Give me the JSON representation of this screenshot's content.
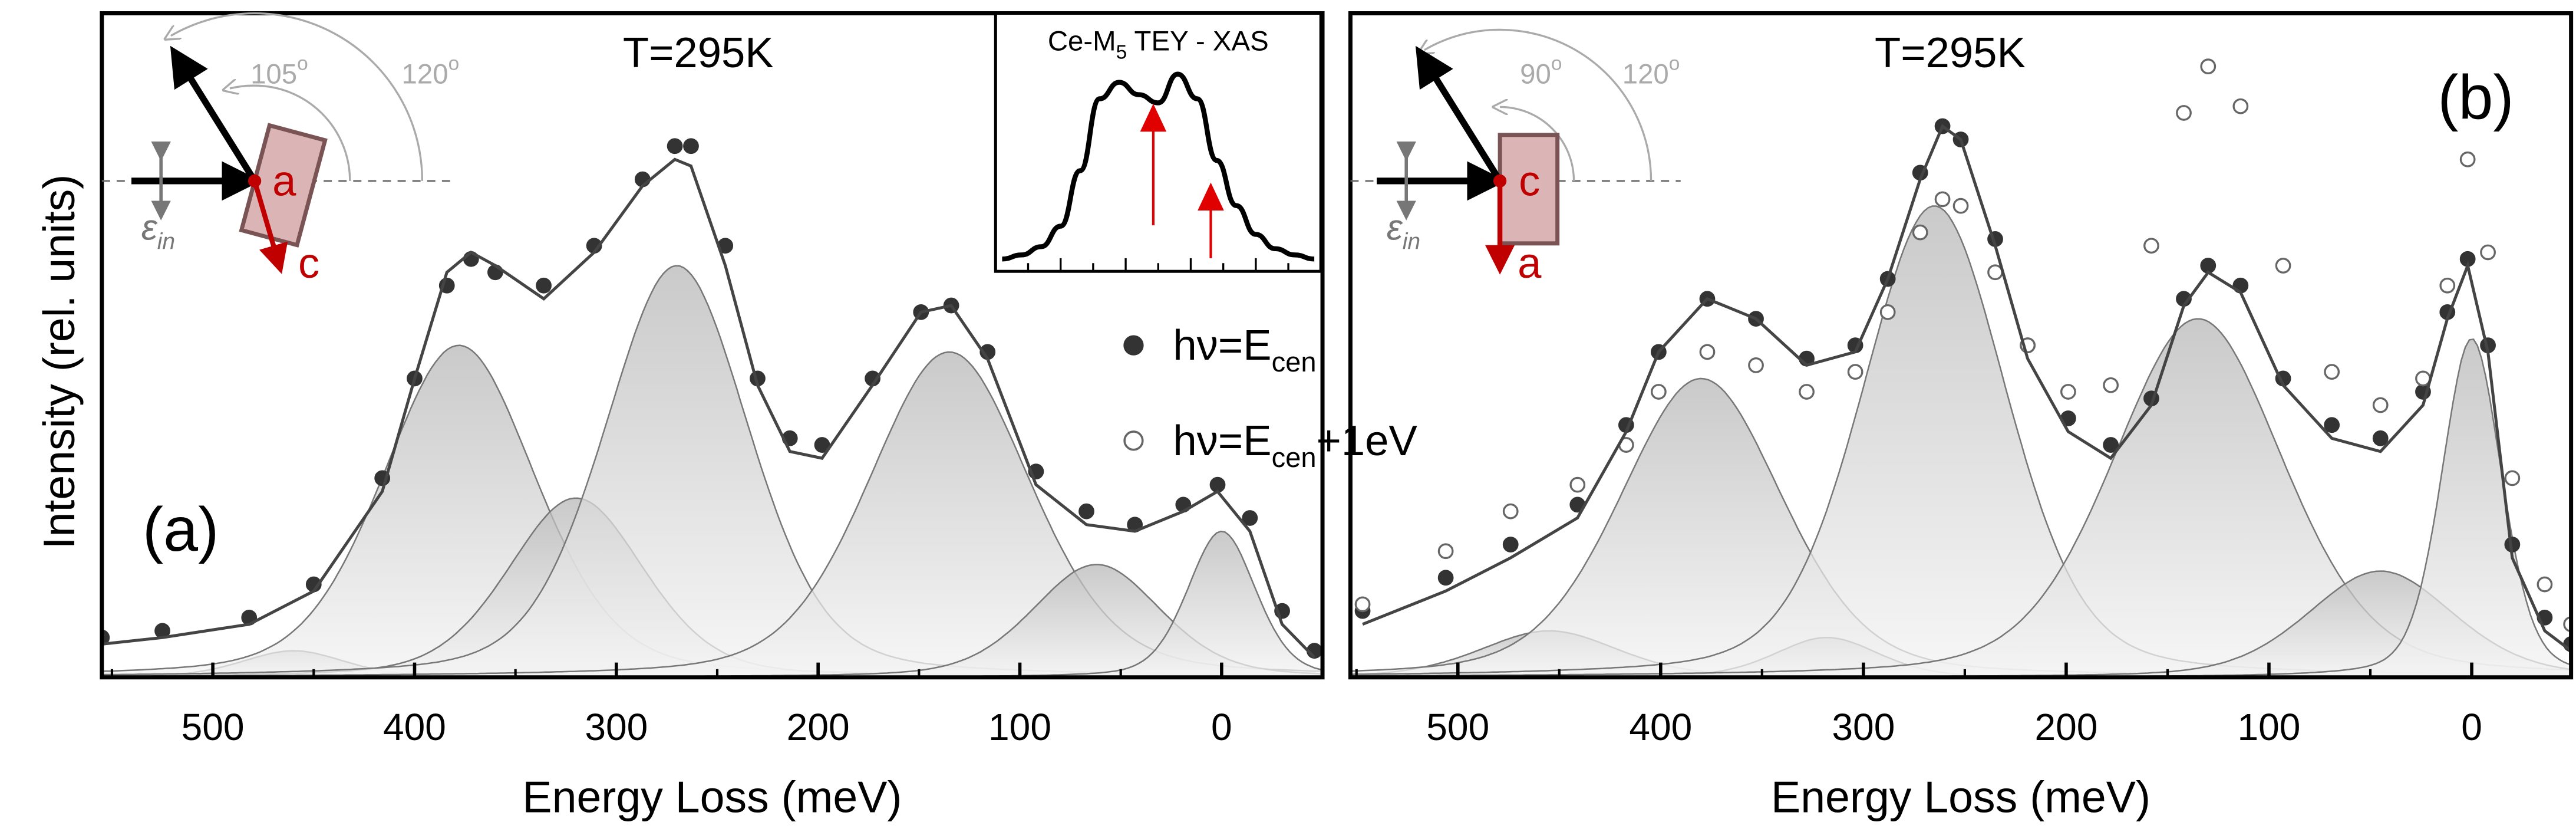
{
  "chart_data": [
    {
      "type": "scatter",
      "panel_label": "(a)",
      "temperature": "T=295K",
      "xlabel": "Energy Loss (meV)",
      "ylabel": "Intensity (rel. units)",
      "xlim": [
        555,
        -50
      ],
      "ylim": [
        0,
        100
      ],
      "xticks": [
        500,
        400,
        300,
        200,
        100,
        0
      ],
      "xminorticks": [
        550,
        450,
        350,
        250,
        150,
        50
      ],
      "x": [
        555,
        525,
        482,
        450,
        416,
        400,
        384,
        372,
        360,
        336,
        311,
        287,
        271,
        263,
        246,
        230,
        214,
        198,
        173,
        149,
        134,
        116,
        92,
        67,
        43,
        19,
        2,
        -14,
        -30,
        -46
      ],
      "series": [
        {
          "style": "filled",
          "color": "#333333",
          "values": [
            6,
            7,
            9,
            14,
            30,
            45,
            59,
            63,
            61,
            59,
            65,
            75,
            80,
            80,
            65,
            45,
            36,
            35,
            45,
            55,
            56,
            49,
            31,
            25,
            23,
            26,
            29,
            24,
            10,
            4
          ]
        },
        {
          "style": "line",
          "color": "#444444",
          "values": [
            5,
            6,
            8,
            13,
            28,
            45,
            61,
            64,
            62,
            57,
            64,
            74,
            78,
            77,
            62,
            44,
            34,
            33,
            44,
            55,
            56,
            48,
            29,
            23,
            22,
            25,
            28,
            22,
            8,
            3
          ]
        }
      ],
      "components": [
        {
          "center": 460,
          "height": 4,
          "width": 60
        },
        {
          "center": 378,
          "height": 50,
          "width": 90
        },
        {
          "center": 320,
          "height": 27,
          "width": 80
        },
        {
          "center": 270,
          "height": 62,
          "width": 85
        },
        {
          "center": 135,
          "height": 49,
          "width": 95
        },
        {
          "center": 62,
          "height": 17,
          "width": 75
        },
        {
          "center": 0,
          "height": 22,
          "width": 40
        }
      ],
      "angles": [
        {
          "text": "105",
          "sup": "o"
        },
        {
          "text": "120",
          "sup": "o"
        }
      ],
      "crystal": {
        "in_plane": "a",
        "out_plane": "c",
        "polarization": "ε",
        "polarization_sub": "in"
      }
    },
    {
      "type": "scatter",
      "panel_label": "(b)",
      "temperature": "T=295K",
      "xlabel": "Energy Loss (meV)",
      "xlim": [
        553,
        -49
      ],
      "ylim": [
        0,
        100
      ],
      "xticks": [
        500,
        400,
        300,
        200,
        100,
        0
      ],
      "xminorticks": [
        550,
        450,
        350,
        250,
        150,
        50
      ],
      "x": [
        547,
        506,
        474,
        441,
        417,
        401,
        377,
        353,
        328,
        304,
        288,
        272,
        261,
        252,
        235,
        219,
        199,
        178,
        158,
        142,
        130,
        114,
        93,
        69,
        45,
        24,
        12,
        2,
        -8,
        -20,
        -36,
        -49
      ],
      "series": [
        {
          "style": "filled",
          "color": "#333333",
          "name": "hν=E",
          "name_sub": "cen",
          "values": [
            10,
            15,
            20,
            26,
            38,
            49,
            57,
            54,
            48,
            50,
            60,
            76,
            83,
            81,
            66,
            50,
            39,
            35,
            42,
            57,
            62,
            59,
            45,
            38,
            36,
            43,
            55,
            63,
            50,
            20,
            9,
            5
          ]
        },
        {
          "style": "open",
          "color": "#666666",
          "name": "hν=E",
          "name_sub": "cen",
          "name_after": "+1eV",
          "values": [
            11,
            19,
            25,
            29,
            35,
            43,
            49,
            47,
            43,
            46,
            55,
            67,
            72,
            71,
            61,
            50,
            43,
            44,
            65,
            85,
            92,
            86,
            62,
            46,
            41,
            45,
            59,
            78,
            64,
            30,
            14,
            8
          ]
        },
        {
          "style": "line",
          "color": "#444444",
          "values": [
            8,
            13,
            18,
            24,
            37,
            49,
            57,
            54,
            47,
            49,
            60,
            75,
            83,
            81,
            65,
            48,
            37,
            33,
            41,
            56,
            61,
            58,
            44,
            36,
            34,
            41,
            54,
            62,
            49,
            18,
            7,
            4
          ]
        }
      ],
      "components": [
        {
          "center": 455,
          "height": 7,
          "width": 80
        },
        {
          "center": 380,
          "height": 45,
          "width": 95
        },
        {
          "center": 318,
          "height": 6,
          "width": 60
        },
        {
          "center": 265,
          "height": 71,
          "width": 85
        },
        {
          "center": 135,
          "height": 54,
          "width": 100
        },
        {
          "center": 45,
          "height": 16,
          "width": 85
        },
        {
          "center": 0,
          "height": 51,
          "width": 35
        }
      ],
      "angles": [
        {
          "text": "90",
          "sup": "o"
        },
        {
          "text": "120",
          "sup": "o"
        }
      ],
      "crystal": {
        "in_plane": "c",
        "out_plane": "a",
        "polarization": "ε",
        "polarization_sub": "in"
      }
    }
  ],
  "inset": {
    "title": "Ce-M",
    "title_sub": "5",
    "title_after": " TEY - XAS",
    "values": [
      2,
      4,
      8,
      18,
      45,
      80,
      88,
      82,
      78,
      92,
      80,
      50,
      28,
      14,
      7,
      4,
      2
    ],
    "ylim": [
      0,
      100
    ]
  }
}
